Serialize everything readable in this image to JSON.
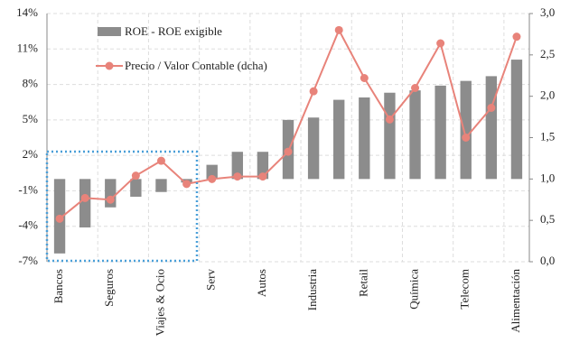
{
  "chart_data": {
    "type": "bar_line",
    "categories": [
      "Bancos",
      null,
      "Seguros",
      null,
      "Viajes & Ocio",
      null,
      "Serv",
      null,
      "Autos",
      null,
      "Industria",
      null,
      "Retail",
      null,
      "Química",
      null,
      "Telecom",
      null,
      "Alimentación"
    ],
    "series": [
      {
        "name": "ROE - ROE exigible",
        "type": "bar",
        "color": "#8c8c8c",
        "values": [
          -6.3,
          -4.1,
          -2.4,
          -1.5,
          -1.1,
          -0.3,
          1.2,
          2.3,
          2.3,
          5.0,
          5.2,
          6.7,
          6.9,
          7.3,
          7.5,
          7.9,
          8.3,
          8.7,
          10.1
        ]
      },
      {
        "name": "Precio / Valor Contable (dcha)",
        "type": "line",
        "axis": "y2",
        "color": "#e8837a",
        "values": [
          0.52,
          0.77,
          0.75,
          1.04,
          1.22,
          0.94,
          1.0,
          1.03,
          1.03,
          1.33,
          2.06,
          2.8,
          2.22,
          1.72,
          2.1,
          2.64,
          1.5,
          1.86,
          2.72
        ]
      }
    ],
    "ylim": [
      -7,
      14
    ],
    "yticks": [
      {
        "value": -7,
        "label": "-7%"
      },
      {
        "value": -4,
        "label": "-4%"
      },
      {
        "value": -1,
        "label": "-1%"
      },
      {
        "value": 2,
        "label": "2%"
      },
      {
        "value": 5,
        "label": "5%"
      },
      {
        "value": 8,
        "label": "8%"
      },
      {
        "value": 11,
        "label": "11%"
      },
      {
        "value": 14,
        "label": "14%"
      }
    ],
    "y2lim": [
      0,
      3
    ],
    "y2ticks": [
      {
        "value": 0,
        "label": "0,0"
      },
      {
        "value": 0.5,
        "label": "0,5"
      },
      {
        "value": 1,
        "label": "1,0"
      },
      {
        "value": 1.5,
        "label": "1,5"
      },
      {
        "value": 2,
        "label": "2,0"
      },
      {
        "value": 2.5,
        "label": "2,5"
      },
      {
        "value": 3,
        "label": "3,0"
      }
    ],
    "grid": true
  }
}
